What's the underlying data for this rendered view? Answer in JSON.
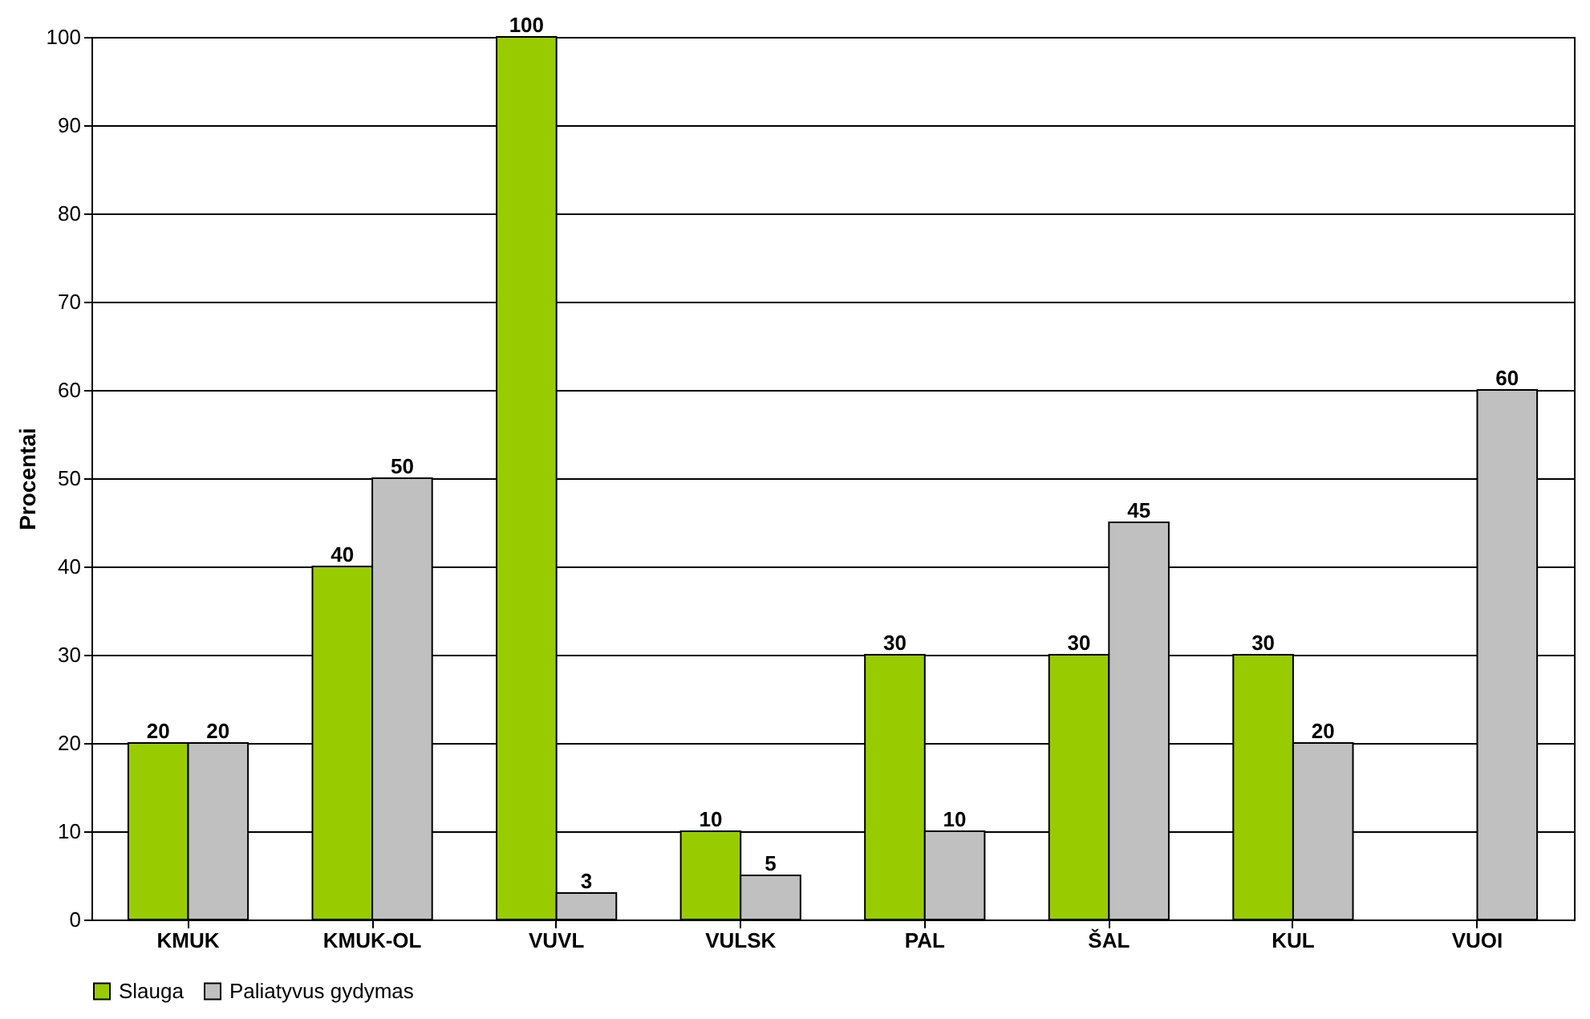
{
  "chart_data": {
    "type": "bar",
    "ylabel": "Procentai",
    "categories": [
      "KMUK",
      "KMUK-OL",
      "VUVL",
      "VULSK",
      "PAL",
      "ŠAL",
      "KUL",
      "VUOI"
    ],
    "series": [
      {
        "name": "Slauga",
        "color": "#99cc00",
        "values": [
          20,
          40,
          100,
          10,
          30,
          30,
          30,
          null
        ]
      },
      {
        "name": "Paliatyvus gydymas",
        "color": "#c0c0c0",
        "values": [
          20,
          50,
          3,
          5,
          10,
          45,
          20,
          60
        ]
      }
    ],
    "ylim": [
      0,
      100
    ],
    "yticks": [
      0,
      10,
      20,
      30,
      40,
      50,
      60,
      70,
      80,
      90,
      100
    ],
    "grid": "y",
    "legend": "bottom",
    "data_labels": true
  }
}
